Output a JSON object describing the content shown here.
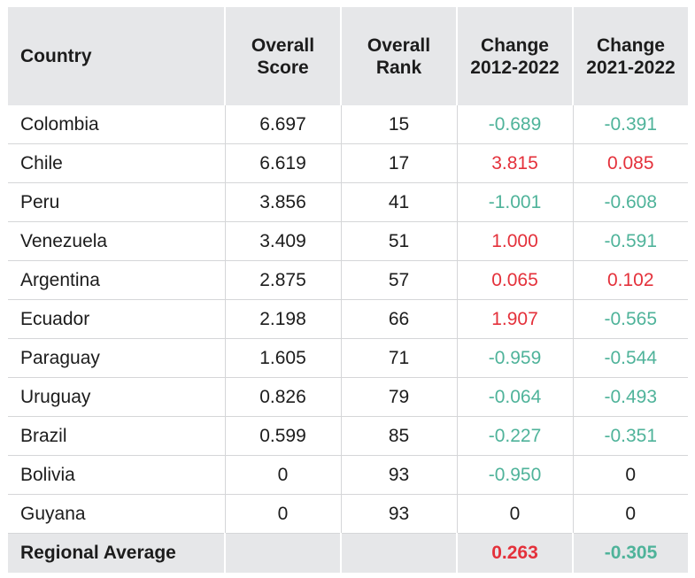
{
  "table": {
    "headers": {
      "country": "Country",
      "score_line1": "Overall",
      "score_line2": "Score",
      "rank_line1": "Overall",
      "rank_line2": "Rank",
      "change1_line1": "Change",
      "change1_line2": "2012-2022",
      "change2_line1": "Change",
      "change2_line2": "2021-2022"
    },
    "rows": [
      {
        "country": "Colombia",
        "score": "6.697",
        "rank": "15",
        "change_2012_2022": "-0.689",
        "change_2021_2022": "-0.391"
      },
      {
        "country": "Chile",
        "score": "6.619",
        "rank": "17",
        "change_2012_2022": "3.815",
        "change_2021_2022": "0.085"
      },
      {
        "country": "Peru",
        "score": "3.856",
        "rank": "41",
        "change_2012_2022": "-1.001",
        "change_2021_2022": "-0.608"
      },
      {
        "country": "Venezuela",
        "score": "3.409",
        "rank": "51",
        "change_2012_2022": "1.000",
        "change_2021_2022": "-0.591"
      },
      {
        "country": "Argentina",
        "score": "2.875",
        "rank": "57",
        "change_2012_2022": "0.065",
        "change_2021_2022": "0.102"
      },
      {
        "country": "Ecuador",
        "score": "2.198",
        "rank": "66",
        "change_2012_2022": "1.907",
        "change_2021_2022": "-0.565"
      },
      {
        "country": "Paraguay",
        "score": "1.605",
        "rank": "71",
        "change_2012_2022": "-0.959",
        "change_2021_2022": "-0.544"
      },
      {
        "country": "Uruguay",
        "score": "0.826",
        "rank": "79",
        "change_2012_2022": "-0.064",
        "change_2021_2022": "-0.493"
      },
      {
        "country": "Brazil",
        "score": "0.599",
        "rank": "85",
        "change_2012_2022": "-0.227",
        "change_2021_2022": "-0.351"
      },
      {
        "country": "Bolivia",
        "score": "0",
        "rank": "93",
        "change_2012_2022": "-0.950",
        "change_2021_2022": "0"
      },
      {
        "country": "Guyana",
        "score": "0",
        "rank": "93",
        "change_2012_2022": "0",
        "change_2021_2022": "0"
      }
    ],
    "footer": {
      "label": "Regional Average",
      "change_2012_2022": "0.263",
      "change_2021_2022": "-0.305"
    },
    "colors": {
      "negative": "#4fb39a",
      "positive": "#e4313b",
      "header_bg": "#e6e7e9"
    }
  }
}
